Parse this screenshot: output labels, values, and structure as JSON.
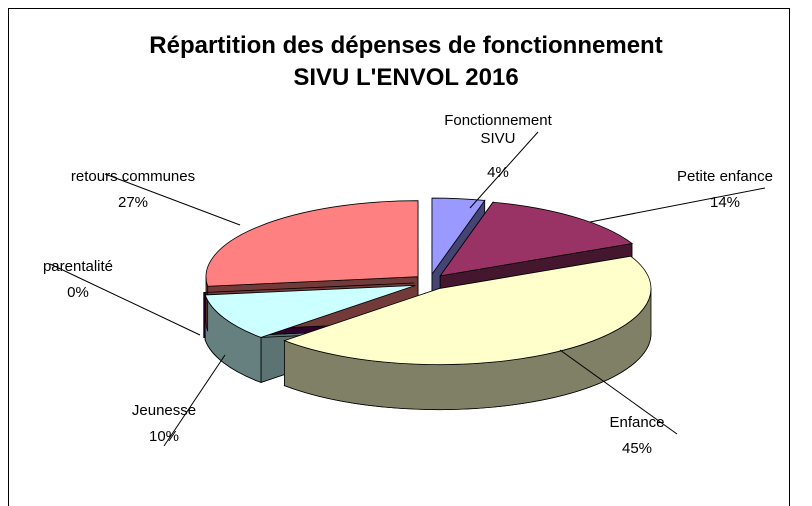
{
  "chart_data": {
    "type": "pie",
    "title": "Répartition des dépenses de fonctionnement",
    "subtitle": "SIVU L'ENVOL 2016",
    "categories": [
      "Fonctionnement SIVU",
      "Petite enfance",
      "Enfance",
      "Jeunesse",
      "parentalité",
      "retours communes"
    ],
    "values": [
      4,
      14,
      45,
      10,
      0,
      27
    ],
    "value_labels": [
      "4%",
      "14%",
      "45%",
      "10%",
      "0%",
      "27%"
    ],
    "colors": [
      "#9999ff",
      "#993366",
      "#ffffcc",
      "#ccffff",
      "#660066",
      "#ff8080"
    ]
  }
}
